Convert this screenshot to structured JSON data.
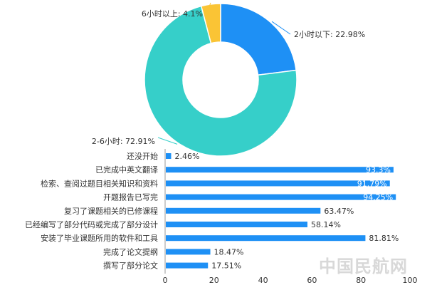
{
  "chart_data": [
    {
      "type": "pie",
      "donut": true,
      "slices": [
        {
          "label": "2小时以下",
          "value": 22.98,
          "display": "2小时以下: 22.98%",
          "color": "#1e90f5"
        },
        {
          "label": "2-6小时",
          "value": 72.91,
          "display": "2-6小时: 72.91%",
          "color": "#36cfc9"
        },
        {
          "label": "6小时以上",
          "value": 4.1,
          "display": "6小时以上: 4.1%",
          "color": "#fac435"
        }
      ]
    },
    {
      "type": "bar",
      "orientation": "horizontal",
      "color": "#1e90f5",
      "xlim": [
        0,
        100
      ],
      "xticks": [
        "0",
        "20",
        "40",
        "60",
        "80",
        "100"
      ],
      "categories": [
        "还没开始",
        "已完成中英文翻译",
        "检索、查阅过题目相关知识和资料",
        "开题报告已写完",
        "复习了课题相关的已修课程",
        "已经编写了部分代码或完成了部分设计",
        "安装了毕业课题所用的软件和工具",
        "完成了论文提纲",
        "撰写了部分论文"
      ],
      "values": [
        2.46,
        93.3,
        91.79,
        94.25,
        63.47,
        58.14,
        81.81,
        18.47,
        17.51
      ],
      "value_labels": [
        "2.46%",
        "93.3%",
        "91.79%",
        "94.25%",
        "63.47%",
        "58.14%",
        "81.81%",
        "18.47%",
        "17.51%"
      ],
      "label_inside": [
        false,
        true,
        true,
        true,
        false,
        false,
        false,
        false,
        false
      ]
    }
  ],
  "watermark": "中国民航网"
}
